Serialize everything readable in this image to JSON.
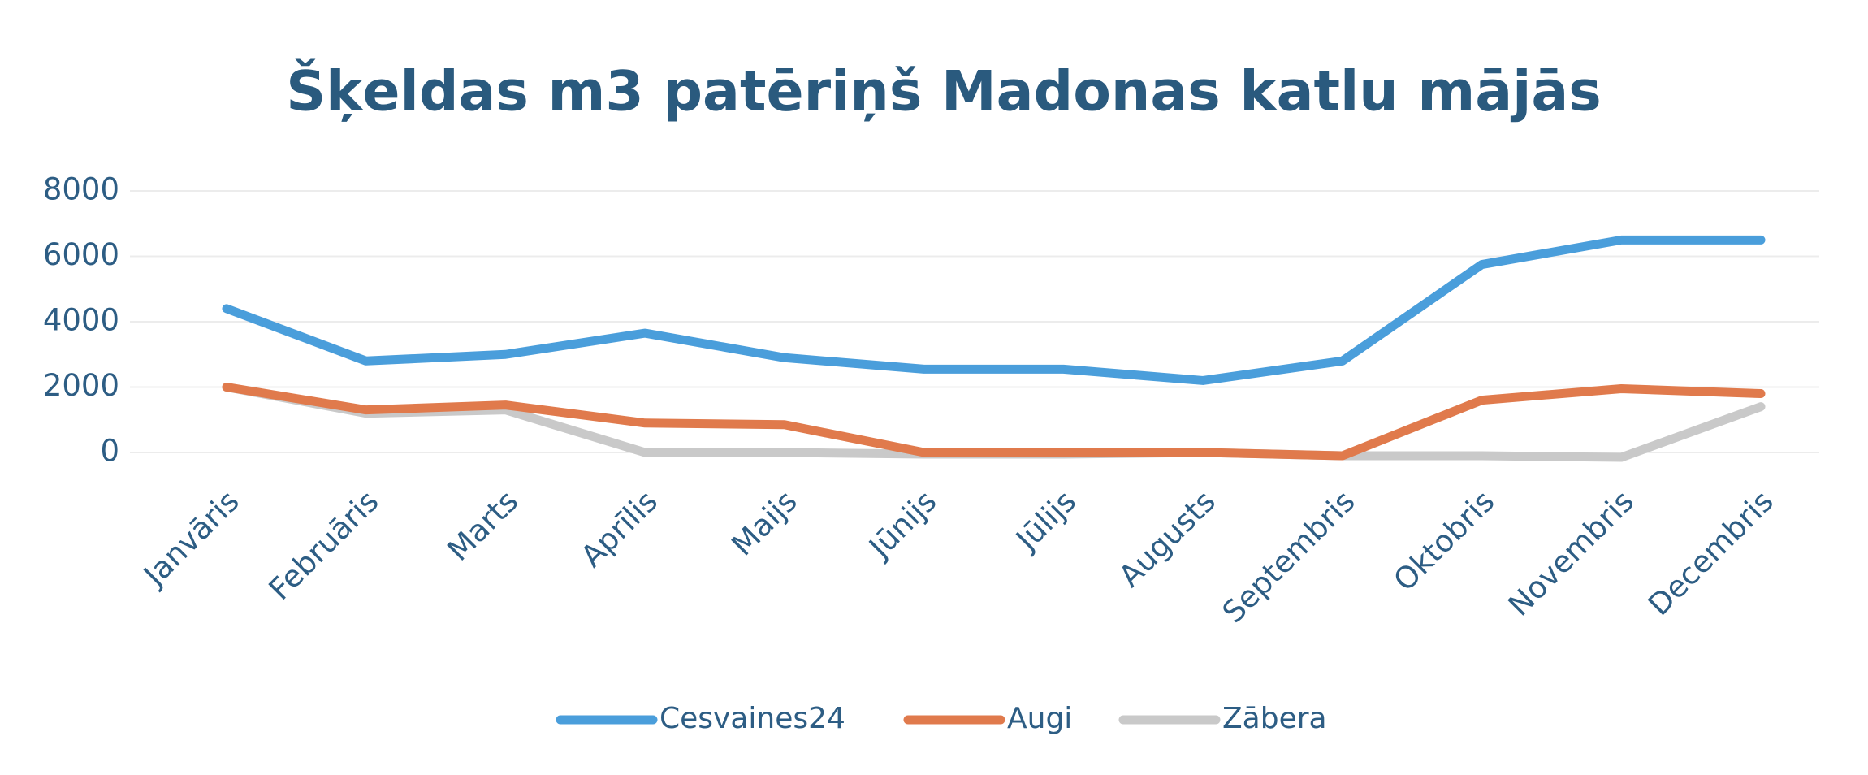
{
  "chart_data": {
    "type": "line",
    "title": "Šķeldas m3 patēriņš Madonas katlu mājās",
    "categories": [
      "Janvāris",
      "Februāris",
      "Marts",
      "Aprīlis",
      "Maijs",
      "Jūnijs",
      "Jūlijs",
      "Augusts",
      "Septembris",
      "Oktobris",
      "Novembris",
      "Decembris"
    ],
    "series": [
      {
        "name": "Cesvaines24",
        "color": "#4a9edb",
        "values": [
          4400,
          2800,
          3000,
          3650,
          2900,
          2550,
          2550,
          2200,
          2800,
          5750,
          6500,
          6500
        ]
      },
      {
        "name": "Augi",
        "color": "#e07a4c",
        "values": [
          2000,
          1300,
          1450,
          900,
          850,
          0,
          0,
          0,
          -100,
          1600,
          1950,
          1800
        ]
      },
      {
        "name": "Zābera",
        "color": "#c9c9c9",
        "values": [
          2000,
          1200,
          1300,
          0,
          0,
          -50,
          -50,
          0,
          -100,
          -100,
          -150,
          1400
        ]
      }
    ],
    "ylim": [
      0,
      8000
    ],
    "yticks": [
      0,
      2000,
      4000,
      6000,
      8000
    ],
    "grid": true,
    "legend": "bottom"
  }
}
